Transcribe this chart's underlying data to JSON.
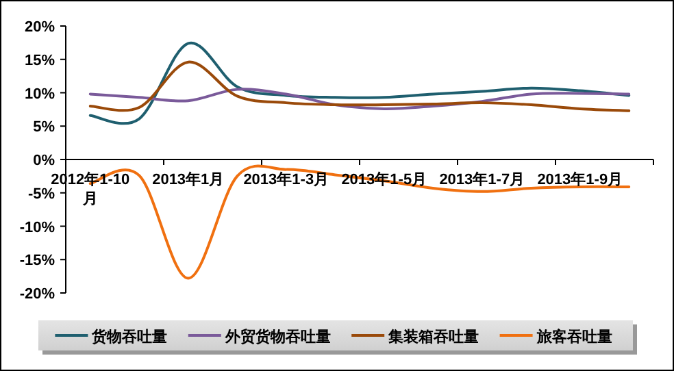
{
  "chart_data": {
    "type": "line",
    "categories": [
      "2012年1-10月",
      null,
      "2013年1月",
      null,
      "2013年1-3月",
      null,
      "2013年1-5月",
      null,
      "2013年1-7月",
      null,
      "2013年1-9月",
      null
    ],
    "series": [
      {
        "name": "货物吞吐量",
        "color": "#1f5f6f",
        "values": [
          6.6,
          6.1,
          17.4,
          10.9,
          9.6,
          9.3,
          9.3,
          9.8,
          10.2,
          10.7,
          10.3,
          9.6
        ]
      },
      {
        "name": "外贸货物吞吐量",
        "color": "#7a5a9a",
        "values": [
          9.8,
          9.3,
          8.8,
          10.5,
          9.8,
          8.2,
          7.6,
          8.0,
          8.7,
          9.8,
          9.9,
          9.8
        ]
      },
      {
        "name": "集装箱吞吐量",
        "color": "#9a4a0a",
        "values": [
          8.0,
          7.8,
          14.6,
          9.5,
          8.5,
          8.2,
          8.2,
          8.3,
          8.5,
          8.2,
          7.6,
          7.3
        ]
      },
      {
        "name": "旅客吞吐量",
        "color": "#f07010",
        "values": [
          -3.6,
          -2.4,
          -17.8,
          -2.5,
          -1.5,
          -2.3,
          -3.2,
          -4.3,
          -4.8,
          -4.3,
          -4.1,
          -4.1
        ]
      }
    ],
    "ylim": [
      -20,
      20
    ],
    "yticks": [
      {
        "value": -20,
        "label": "-20%"
      },
      {
        "value": -15,
        "label": "-15%"
      },
      {
        "value": -10,
        "label": "-10%"
      },
      {
        "value": -5,
        "label": "-5%"
      },
      {
        "value": 0,
        "label": "0%"
      },
      {
        "value": 5,
        "label": "5%"
      },
      {
        "value": 10,
        "label": "10%"
      },
      {
        "value": 15,
        "label": "15%"
      },
      {
        "value": 20,
        "label": "20%"
      }
    ],
    "grid": false,
    "legend": "bottom"
  }
}
